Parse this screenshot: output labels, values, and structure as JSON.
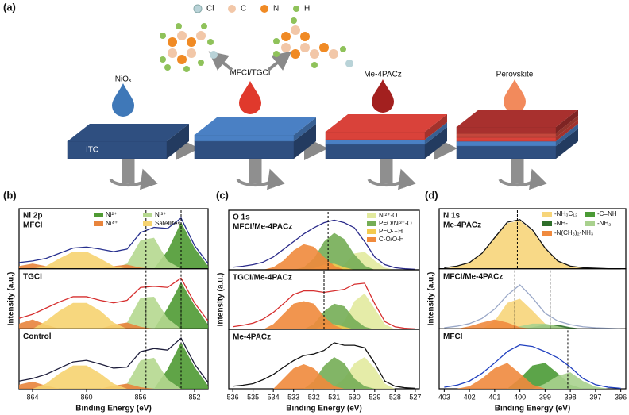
{
  "schematic": {
    "panel_label": "(a)",
    "elements": [
      "Cl",
      "C",
      "N",
      "H"
    ],
    "steps": [
      "NiOₓ",
      "MFCI/TGCI",
      "Me-4PACz",
      "Perovskite"
    ],
    "substrate": "ITO"
  },
  "chart_data": [
    {
      "type": "line",
      "panel_label": "(b)",
      "title": "Ni 2p",
      "xlabel": "Binding Energy (eV)",
      "ylabel": "Intensity (a.u.)",
      "xlim": [
        865,
        851
      ],
      "xticks": [
        864,
        860,
        856,
        852
      ],
      "ylim": [
        0,
        1.1
      ],
      "x": [
        865,
        864,
        863,
        862,
        861,
        860,
        859,
        858,
        857,
        856,
        855,
        854,
        853,
        852,
        851
      ],
      "series": [
        {
          "name": "Ni²⁺",
          "color": "#4f9a33"
        },
        {
          "name": "Ni³⁺",
          "color": "#b5d88f"
        },
        {
          "name": "Ni⁴⁺",
          "color": "#e8843c"
        },
        {
          "name": "Satellites",
          "color": "#f6d370"
        }
      ],
      "panels": [
        {
          "label": "MFCI",
          "line_color": "#27308f",
          "dashed": [
            855.6,
            853
          ],
          "envelope": [
            0.12,
            0.15,
            0.2,
            0.3,
            0.4,
            0.42,
            0.38,
            0.33,
            0.38,
            0.7,
            0.8,
            0.78,
            0.98,
            0.45,
            0.1
          ],
          "components": [
            [
              null,
              null,
              null,
              null,
              null,
              null,
              null,
              null,
              null,
              null,
              0,
              0.35,
              0.9,
              0.4,
              0.05
            ],
            [
              null,
              null,
              null,
              null,
              null,
              null,
              null,
              0,
              0.1,
              0.55,
              0.6,
              0.15,
              0,
              null,
              null
            ],
            [
              0.05,
              0.1,
              0.05,
              0,
              null,
              null,
              0,
              0.05,
              0.08,
              0.02,
              0,
              null,
              null,
              null,
              null
            ],
            [
              null,
              0,
              0.05,
              0.2,
              0.33,
              0.33,
              0.2,
              0.05,
              0,
              null,
              null,
              null,
              null,
              null,
              null
            ]
          ]
        },
        {
          "label": "TGCI",
          "line_color": "#d62f2f",
          "dashed": [
            855.6,
            853
          ],
          "envelope": [
            0.2,
            0.28,
            0.4,
            0.52,
            0.62,
            0.62,
            0.55,
            0.5,
            0.55,
            0.8,
            0.82,
            0.8,
            0.98,
            0.5,
            0.15
          ],
          "components": [
            [
              null,
              null,
              null,
              null,
              null,
              null,
              null,
              null,
              null,
              null,
              0,
              0.4,
              0.9,
              0.45,
              0.08
            ],
            [
              null,
              null,
              null,
              null,
              null,
              null,
              null,
              0,
              0.12,
              0.6,
              0.62,
              0.2,
              0,
              null,
              null
            ],
            [
              0.1,
              0.18,
              0.08,
              0,
              null,
              null,
              0,
              0.08,
              0.12,
              0.04,
              0,
              null,
              null,
              null,
              null
            ],
            [
              null,
              0,
              0.15,
              0.35,
              0.5,
              0.5,
              0.35,
              0.12,
              0,
              null,
              null,
              null,
              null,
              null,
              null
            ]
          ]
        },
        {
          "label": "Control",
          "line_color": "#1e1e3c",
          "dashed": [
            855.6,
            853
          ],
          "envelope": [
            0.15,
            0.2,
            0.28,
            0.4,
            0.52,
            0.55,
            0.48,
            0.4,
            0.42,
            0.72,
            0.78,
            0.75,
            0.98,
            0.48,
            0.12
          ],
          "components": [
            [
              null,
              null,
              null,
              null,
              null,
              null,
              null,
              null,
              null,
              null,
              0,
              0.38,
              0.9,
              0.42,
              0.06
            ],
            [
              null,
              null,
              null,
              null,
              null,
              null,
              null,
              0,
              0.1,
              0.55,
              0.6,
              0.18,
              0,
              null,
              null
            ],
            [
              0.08,
              0.14,
              0.06,
              0,
              null,
              null,
              0,
              0.06,
              0.1,
              0.03,
              0,
              null,
              null,
              null,
              null
            ],
            [
              null,
              0,
              0.1,
              0.3,
              0.45,
              0.45,
              0.3,
              0.1,
              0,
              null,
              null,
              null,
              null,
              null,
              null
            ]
          ]
        }
      ]
    },
    {
      "type": "line",
      "panel_label": "(c)",
      "title": "O 1s",
      "xlabel": "Binding Energy (eV)",
      "ylabel": "Intensity (a.u.)",
      "xlim": [
        536.2,
        526.8
      ],
      "xticks": [
        536,
        535,
        534,
        533,
        532,
        531,
        530,
        529,
        528,
        527
      ],
      "ylim": [
        0,
        1.1
      ],
      "x": [
        536,
        535.5,
        535,
        534.5,
        534,
        533.5,
        533,
        532.5,
        532,
        531.5,
        531,
        530.5,
        530,
        529.5,
        529,
        528.5,
        528,
        527.5,
        527
      ],
      "series": [
        {
          "name": "Ni²⁺-O",
          "color": "#e2ea9e"
        },
        {
          "name": "P=O/Ni³⁺-O",
          "color": "#74ad55"
        },
        {
          "name": "P=O···H",
          "color": "#f3ca4e"
        },
        {
          "name": "C-O/O-H",
          "color": "#f08a3c"
        }
      ],
      "panels": [
        {
          "label": "MFCI/Me-4PACz",
          "line_color": "#2a2a8a",
          "dashed": [
            531.3
          ],
          "envelope": [
            0.05,
            0.07,
            0.1,
            0.15,
            0.25,
            0.4,
            0.55,
            0.7,
            0.82,
            0.92,
            0.97,
            0.92,
            0.82,
            0.55,
            0.25,
            0.1,
            0.04,
            0.02,
            0.01
          ],
          "components": [
            [
              null,
              null,
              null,
              null,
              null,
              null,
              null,
              null,
              null,
              null,
              0,
              0.1,
              0.32,
              0.35,
              0.18,
              0.04,
              0,
              null,
              null
            ],
            [
              null,
              null,
              null,
              null,
              null,
              null,
              0,
              0.05,
              0.22,
              0.55,
              0.72,
              0.6,
              0.3,
              0.08,
              0,
              null,
              null,
              null,
              null
            ],
            [
              null,
              null,
              null,
              null,
              null,
              null,
              null,
              0,
              0.03,
              0.1,
              0.12,
              0.05,
              0,
              null,
              null,
              null,
              null,
              null,
              null
            ],
            [
              null,
              null,
              null,
              0,
              0.05,
              0.18,
              0.38,
              0.5,
              0.45,
              0.25,
              0.08,
              0,
              null,
              null,
              null,
              null,
              null,
              null,
              null
            ]
          ]
        },
        {
          "label": "TGCI/Me-4PACz",
          "line_color": "#d62f2f",
          "dashed": [
            531.5
          ],
          "envelope": [
            0.05,
            0.08,
            0.12,
            0.2,
            0.33,
            0.5,
            0.68,
            0.75,
            0.75,
            0.72,
            0.75,
            0.78,
            0.88,
            0.9,
            0.5,
            0.15,
            0.05,
            0.02,
            0.01
          ],
          "components": [
            [
              null,
              null,
              null,
              null,
              null,
              null,
              null,
              null,
              null,
              null,
              0,
              0.15,
              0.55,
              0.7,
              0.4,
              0.1,
              0,
              null,
              null
            ],
            [
              null,
              null,
              null,
              null,
              null,
              null,
              null,
              0,
              0.1,
              0.35,
              0.5,
              0.45,
              0.2,
              0.05,
              0,
              null,
              null,
              null,
              null
            ],
            [
              null,
              null,
              null,
              null,
              null,
              null,
              null,
              null,
              0,
              0.08,
              0.1,
              0.05,
              0,
              null,
              null,
              null,
              null,
              null,
              null
            ],
            [
              null,
              null,
              null,
              0,
              0.1,
              0.3,
              0.5,
              0.55,
              0.5,
              0.25,
              0.08,
              0,
              null,
              null,
              null,
              null,
              null,
              null,
              null
            ]
          ]
        },
        {
          "label": "Me-4PACz",
          "line_color": "#111111",
          "dashed": [],
          "envelope": [
            0.05,
            0.07,
            0.1,
            0.18,
            0.28,
            0.42,
            0.55,
            0.65,
            0.68,
            0.75,
            0.9,
            0.85,
            0.85,
            0.8,
            0.5,
            0.15,
            0.05,
            0.02,
            0.01
          ],
          "components": [
            [
              null,
              null,
              null,
              null,
              null,
              null,
              null,
              null,
              null,
              0,
              0.05,
              0.2,
              0.5,
              0.62,
              0.4,
              0.1,
              0,
              null,
              null
            ],
            [
              null,
              null,
              null,
              null,
              null,
              null,
              null,
              0,
              0.15,
              0.45,
              0.62,
              0.5,
              0.2,
              0.05,
              0,
              null,
              null,
              null,
              null
            ],
            null,
            [
              null,
              null,
              null,
              null,
              0,
              0.2,
              0.4,
              0.48,
              0.4,
              0.2,
              0.05,
              0,
              null,
              null,
              null,
              null,
              null,
              null,
              null
            ]
          ]
        }
      ]
    },
    {
      "type": "line",
      "panel_label": "(d)",
      "title": "N 1s",
      "xlabel": "Binding Energy (eV)",
      "ylabel": "Intensity (a.u.)",
      "xlim": [
        403.2,
        395.8
      ],
      "xticks": [
        403,
        402,
        401,
        400,
        399,
        398,
        397,
        396
      ],
      "ylim": [
        0,
        1.1
      ],
      "x": [
        403,
        402.5,
        402,
        401.5,
        401,
        400.5,
        400,
        399.5,
        399,
        398.5,
        398,
        397.5,
        397,
        396.5,
        396
      ],
      "series": [
        {
          "name": "-NH₃C₁₂",
          "color": "#f7d57a"
        },
        {
          "name": "-C=NH",
          "color": "#4a9a35"
        },
        {
          "name": "-NH-",
          "color": "#2e6e2a"
        },
        {
          "name": "-NH₂",
          "color": "#a9d18e"
        },
        {
          "name": "-N(CH₃)₂-NH₃",
          "color": "#f08a3e"
        }
      ],
      "panels": [
        {
          "label": "Me-4PACz",
          "line_color": "#111111",
          "dashed": [
            400.1
          ],
          "envelope": [
            0.02,
            0.05,
            0.12,
            0.3,
            0.6,
            0.9,
            0.95,
            0.75,
            0.4,
            0.15,
            0.05,
            0.02,
            0.01,
            0,
            0
          ],
          "components": [
            [
              0,
              0.04,
              0.11,
              0.29,
              0.59,
              0.88,
              0.93,
              0.73,
              0.39,
              0.14,
              0.04,
              0.01,
              0,
              null,
              null
            ],
            null,
            null,
            null,
            null
          ]
        },
        {
          "label": "MFCI/Me-4PACz",
          "line_color": "#9aa8c8",
          "dashed": [
            400.2,
            398.8
          ],
          "envelope": [
            0.02,
            0.05,
            0.1,
            0.2,
            0.38,
            0.65,
            0.85,
            0.6,
            0.3,
            0.15,
            0.08,
            0.04,
            0.02,
            0.01,
            0
          ],
          "components": [
            [
              null,
              null,
              null,
              0,
              0.15,
              0.5,
              0.58,
              0.35,
              0.1,
              0,
              null,
              null,
              null,
              null,
              null
            ],
            null,
            [
              null,
              null,
              null,
              null,
              null,
              null,
              0,
              0.03,
              0.08,
              0.08,
              0.03,
              0,
              null,
              null,
              null
            ],
            [
              null,
              null,
              null,
              null,
              null,
              0,
              0.05,
              0.1,
              0.1,
              0.05,
              0,
              null,
              null,
              null,
              null
            ],
            [
              null,
              0,
              0.05,
              0.12,
              0.18,
              0.12,
              0.03,
              0,
              null,
              null,
              null,
              null,
              null,
              null,
              null
            ]
          ]
        },
        {
          "label": "MFCI",
          "line_color": "#1f3fbf",
          "dashed": [
            398.1
          ],
          "envelope": [
            0.03,
            0.07,
            0.15,
            0.3,
            0.5,
            0.72,
            0.85,
            0.82,
            0.72,
            0.6,
            0.42,
            0.2,
            0.08,
            0.03,
            0.01
          ],
          "components": [
            null,
            [
              null,
              null,
              null,
              null,
              null,
              0,
              0.2,
              0.45,
              0.5,
              0.3,
              0.08,
              0,
              null,
              null,
              null
            ],
            null,
            [
              null,
              null,
              null,
              null,
              null,
              null,
              null,
              0,
              0.1,
              0.25,
              0.32,
              0.15,
              0.04,
              0,
              null
            ],
            [
              null,
              0,
              0.05,
              0.2,
              0.4,
              0.5,
              0.3,
              0.08,
              0,
              null,
              null,
              null,
              null,
              null,
              null
            ]
          ]
        }
      ]
    }
  ]
}
